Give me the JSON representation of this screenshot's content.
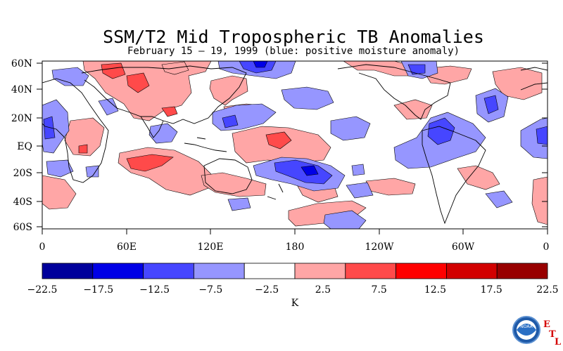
{
  "title": "SSM/T2 Mid Tropospheric TB Anomalies",
  "subtitle": "February 15 – 19, 1999 (blue: positive moisture anomaly)",
  "map": {
    "lat_labels": [
      "60N",
      "40N",
      "20N",
      "EQ",
      "20S",
      "40S",
      "60S"
    ],
    "lon_labels": [
      "0",
      "60E",
      "120E",
      "180",
      "120W",
      "60W",
      "0"
    ]
  },
  "colorbar": {
    "unit": "K",
    "tick_labels": [
      "−22.5",
      "−17.5",
      "−12.5",
      "−7.5",
      "−2.5",
      "2.5",
      "7.5",
      "12.5",
      "17.5",
      "22.5"
    ],
    "colors": [
      "#00009b",
      "#0000e6",
      "#4646ff",
      "#9696ff",
      "#ffffff",
      "#ffa6a6",
      "#ff4a4a",
      "#ff0000",
      "#d20000",
      "#980000"
    ]
  },
  "logo": {
    "name": "noaa-etl-logo",
    "text": "NOAA",
    "letters": [
      "E",
      "T",
      "L"
    ]
  }
}
